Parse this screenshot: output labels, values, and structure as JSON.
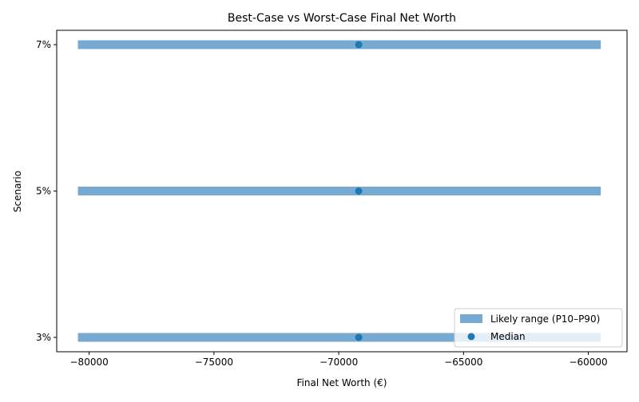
{
  "chart_data": {
    "type": "range-dot",
    "title": "Best-Case vs Worst-Case Final Net Worth",
    "xlabel": "Final Net Worth (€)",
    "ylabel": "Scenario",
    "xlim": [
      -81300,
      -58450
    ],
    "x_ticks": [
      -80000,
      -75000,
      -70000,
      -65000,
      -60000
    ],
    "x_tick_labels": [
      "−80000",
      "−75000",
      "−70000",
      "−65000",
      "−60000"
    ],
    "categories": [
      "3%",
      "5%",
      "7%"
    ],
    "series": [
      {
        "name": "Likely range (P10–P90)",
        "kind": "range",
        "color": "#77aad2",
        "low": [
          -80450,
          -80450,
          -80450
        ],
        "high": [
          -59500,
          -59500,
          -59500
        ]
      },
      {
        "name": "Median",
        "kind": "point",
        "color": "#1f77b4",
        "values": [
          -69200,
          -69200,
          -69200
        ]
      }
    ],
    "legend_position": "lower-right",
    "grid": false
  }
}
